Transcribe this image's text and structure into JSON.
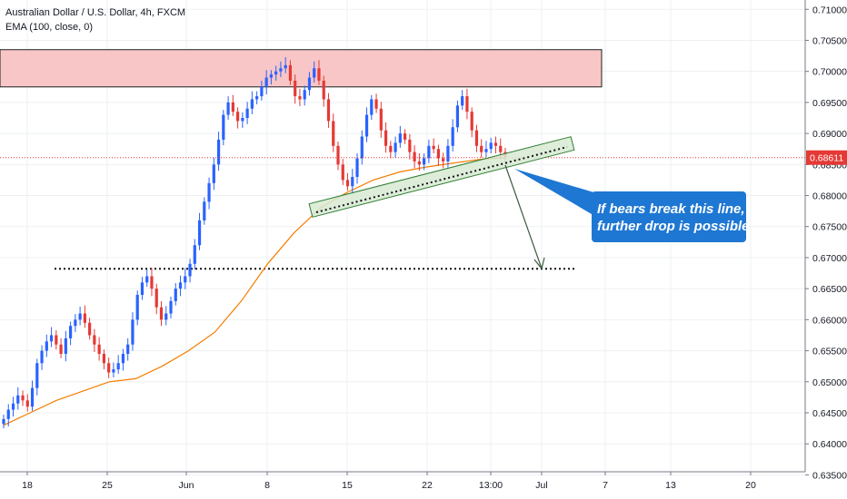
{
  "legend": {
    "symbol": "Australian Dollar / U.S. Dollar, 4h, FXCM",
    "indicator": "EMA (100, close, 0)"
  },
  "colors": {
    "up": "#2962ff",
    "down": "#e53935",
    "ema": "#f57c00",
    "zone_fill": "#f8c6c6",
    "zone_stroke": "#1f1f1f",
    "channel_fill": "#d7ead2",
    "callout": "#1e77d3",
    "price_line": "#e53935",
    "grid": "#eef0f3"
  },
  "annotations": {
    "callout_line1": "If bears break this line,",
    "callout_line2": "further drop is possible",
    "last_price": "0.68611",
    "resistance_zone": [
      0.6975,
      0.7035
    ],
    "target_level": 0.6682
  },
  "chart_data": {
    "type": "candlestick",
    "title": "Australian Dollar / U.S. Dollar, 4h, FXCM",
    "xlabel": "",
    "ylabel": "",
    "ylim": [
      0.6355,
      0.7115
    ],
    "y_ticks": [
      "0.71000",
      "0.70500",
      "0.70000",
      "0.69500",
      "0.69000",
      "0.68500",
      "0.68000",
      "0.67500",
      "0.67000",
      "0.66500",
      "0.66000",
      "0.65500",
      "0.65000",
      "0.64500",
      "0.64000",
      "0.63500"
    ],
    "x_ticks": [
      "18",
      "25",
      "Jun",
      "8",
      "15",
      "22",
      "13:00",
      "Jul",
      "7",
      "13",
      "20"
    ],
    "series": [
      {
        "name": "EMA (100, close, 0)",
        "values": [
          0.643,
          0.645,
          0.647,
          0.6485,
          0.65,
          0.6505,
          0.6525,
          0.655,
          0.658,
          0.663,
          0.669,
          0.674,
          0.678,
          0.6805,
          0.6825,
          0.6838,
          0.6846,
          0.6852,
          0.6858,
          0.6861
        ]
      }
    ],
    "closes": [
      0.644,
      0.6455,
      0.6465,
      0.6478,
      0.647,
      0.646,
      0.649,
      0.653,
      0.655,
      0.6565,
      0.6575,
      0.656,
      0.6545,
      0.657,
      0.659,
      0.66,
      0.661,
      0.6595,
      0.6575,
      0.656,
      0.6545,
      0.653,
      0.6515,
      0.652,
      0.653,
      0.6545,
      0.656,
      0.66,
      0.664,
      0.666,
      0.667,
      0.665,
      0.662,
      0.66,
      0.661,
      0.663,
      0.665,
      0.666,
      0.667,
      0.669,
      0.672,
      0.676,
      0.679,
      0.682,
      0.685,
      0.689,
      0.693,
      0.695,
      0.6935,
      0.692,
      0.6925,
      0.694,
      0.6955,
      0.696,
      0.6975,
      0.699,
      0.6995,
      0.7,
      0.7005,
      0.701,
      0.6985,
      0.696,
      0.6955,
      0.697,
      0.699,
      0.7005,
      0.6985,
      0.6955,
      0.692,
      0.688,
      0.685,
      0.6825,
      0.6815,
      0.683,
      0.686,
      0.6895,
      0.693,
      0.6955,
      0.694,
      0.6905,
      0.688,
      0.687,
      0.6885,
      0.69,
      0.689,
      0.687,
      0.6855,
      0.685,
      0.686,
      0.688,
      0.6875,
      0.686,
      0.6855,
      0.688,
      0.691,
      0.6945,
      0.696,
      0.6935,
      0.6905,
      0.688,
      0.687,
      0.6875,
      0.6885,
      0.688,
      0.687,
      0.6862
    ]
  }
}
